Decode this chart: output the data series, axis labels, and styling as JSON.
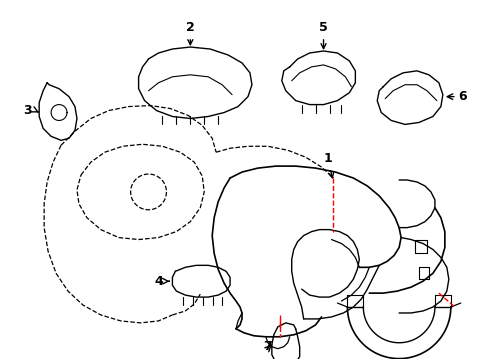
{
  "background_color": "#ffffff",
  "line_color": "#000000",
  "dashed_color": "#ff0000",
  "label_color": "#000000"
}
